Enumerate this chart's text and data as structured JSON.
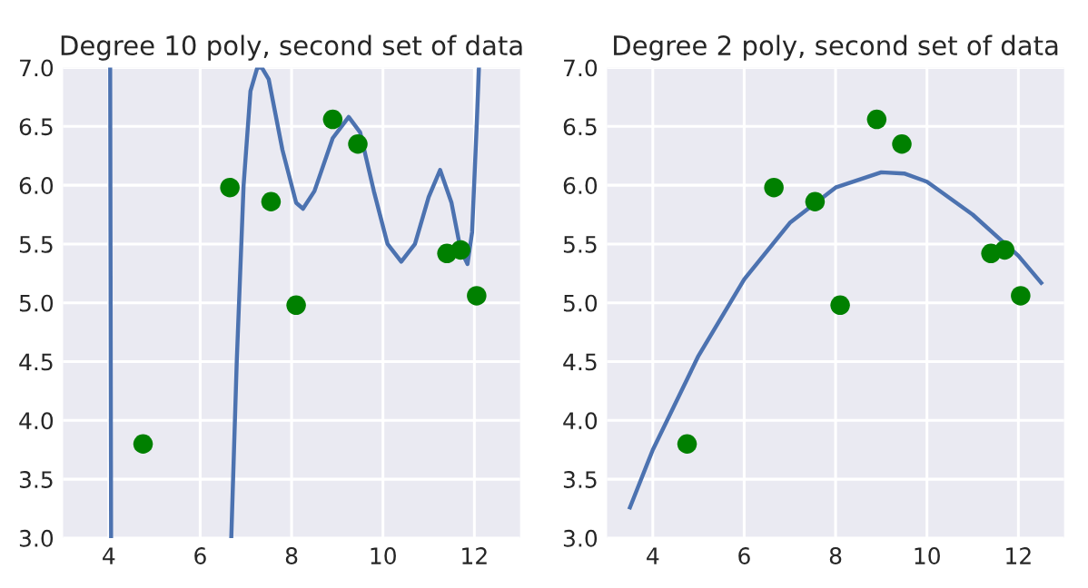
{
  "chart_data": [
    {
      "type": "scatter",
      "title": "Degree 10 poly, second set of data",
      "xlim": [
        3,
        13
      ],
      "ylim": [
        3.0,
        7.0
      ],
      "xticks": [
        4,
        6,
        8,
        10,
        12
      ],
      "yticks": [
        {
          "value": 3.0,
          "label": "3.0"
        },
        3.5,
        {
          "value": 4.0,
          "label": "4.0"
        },
        4.5,
        {
          "value": 5.0,
          "label": "5.0"
        },
        5.5,
        {
          "value": 6.0,
          "label": "6.0"
        },
        6.5,
        {
          "value": 7.0,
          "label": "7.0"
        }
      ],
      "grid": true,
      "series": [
        {
          "marker": "circle",
          "color": "#008000",
          "x": [
            4.75,
            6.65,
            7.55,
            8.1,
            8.9,
            9.45,
            11.4,
            11.7,
            12.05
          ],
          "values": [
            3.8,
            5.98,
            5.86,
            4.98,
            6.56,
            6.35,
            5.42,
            5.45,
            5.06
          ]
        },
        {
          "type": "line",
          "marker": "none",
          "line_style": "solid",
          "color": "#4c72b0",
          "x": [
            4.03,
            4.05,
            5.0,
            6.68,
            6.8,
            6.95,
            7.1,
            7.25,
            7.35,
            7.5,
            7.8,
            8.1,
            8.25,
            8.5,
            8.9,
            9.25,
            9.5,
            9.8,
            10.1,
            10.4,
            10.7,
            11.0,
            11.25,
            11.5,
            11.7,
            11.85,
            11.95,
            12.05,
            12.1
          ],
          "values": [
            7.0,
            3.0,
            null,
            3.0,
            4.5,
            6.0,
            6.8,
            7.0,
            7.0,
            6.9,
            6.3,
            5.85,
            5.8,
            5.95,
            6.4,
            6.58,
            6.45,
            5.95,
            5.5,
            5.35,
            5.5,
            5.9,
            6.13,
            5.85,
            5.45,
            5.33,
            5.6,
            6.5,
            7.0
          ]
        }
      ]
    },
    {
      "type": "scatter",
      "title": "Degree 2 poly, second set of data",
      "xlim": [
        3,
        13
      ],
      "ylim": [
        3.0,
        7.0
      ],
      "xticks": [
        4,
        6,
        8,
        10,
        12
      ],
      "yticks": [
        {
          "value": 3.0,
          "label": "3.0"
        },
        3.5,
        {
          "value": 4.0,
          "label": "4.0"
        },
        4.5,
        {
          "value": 5.0,
          "label": "5.0"
        },
        5.5,
        {
          "value": 6.0,
          "label": "6.0"
        },
        6.5,
        {
          "value": 7.0,
          "label": "7.0"
        }
      ],
      "grid": true,
      "series": [
        {
          "marker": "circle",
          "color": "#008000",
          "x": [
            4.75,
            6.65,
            7.55,
            8.1,
            8.9,
            9.45,
            11.4,
            11.7,
            12.05
          ],
          "values": [
            3.8,
            5.98,
            5.86,
            4.98,
            6.56,
            6.35,
            5.42,
            5.45,
            5.06
          ]
        },
        {
          "type": "line",
          "marker": "none",
          "line_style": "solid",
          "color": "#4c72b0",
          "x": [
            3.5,
            4.0,
            5.0,
            6.0,
            7.0,
            8.0,
            9.0,
            9.5,
            10.0,
            11.0,
            12.0,
            12.5
          ],
          "values": [
            3.26,
            3.75,
            4.55,
            5.2,
            5.68,
            5.98,
            6.11,
            6.1,
            6.03,
            5.75,
            5.4,
            5.17
          ]
        }
      ]
    }
  ]
}
